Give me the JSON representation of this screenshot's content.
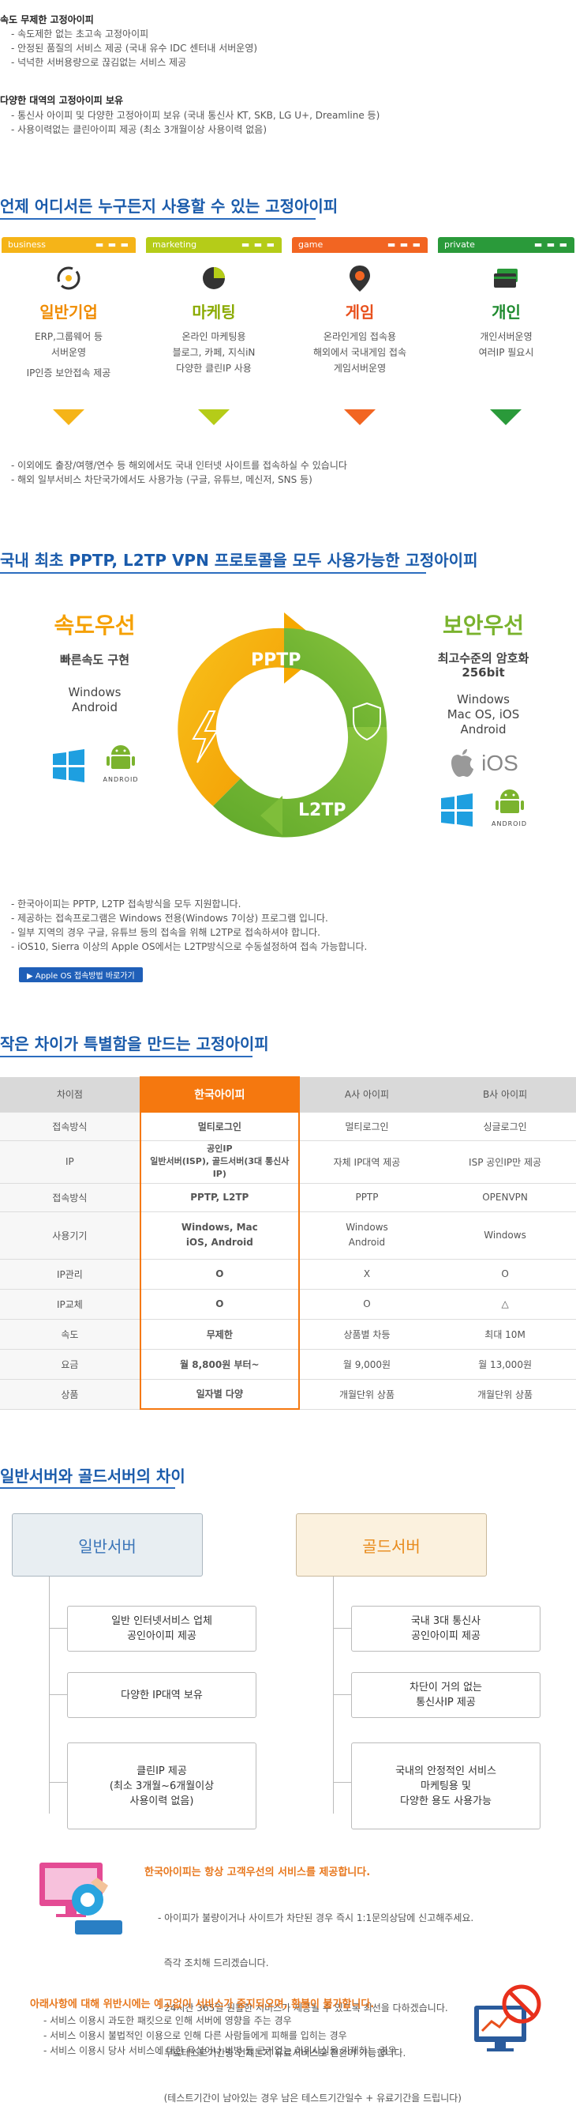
{
  "intro": {
    "group1_title": "속도 무제한 고정아이피",
    "group1_items": [
      "- 속도제한 없는 초고속 고정아이피",
      "- 안정된 품질의 서비스 제공 (국내 유수 IDC 센터내 서버운영)",
      "- 넉넉한 서버용량으로 끊김없는 서비스 제공"
    ],
    "group2_title": "다양한 대역의 고정아이피 보유",
    "group2_items": [
      "- 통신사 아이피 및 다양한 고정아이피 보유 (국내 통신사 KT, SKB, LG U+, Dreamline 등)",
      "- 사용이력없는 클린아이피 제공 (최소 3개월이상 사용이력 없음)"
    ]
  },
  "section1": {
    "title": "언제 어디서든 누구든지 사용할 수 있는 고정아이피",
    "categories": [
      {
        "tag": "business",
        "dots": "▬ ▬ ▬",
        "name": "일반기업",
        "lines": [
          "ERP,그룹웨어 등",
          "서버운영",
          "IP인증 보안접속 제공"
        ],
        "color": "#f5b418",
        "name_color": "#f08c00"
      },
      {
        "tag": "marketing",
        "dots": "▬ ▬ ▬",
        "name": "마케팅",
        "lines": [
          "온라인 마케팅용",
          "블로그, 카페, 지식iN",
          "다양한 클린IP 사용"
        ],
        "color": "#b5cc18",
        "name_color": "#8aaa00"
      },
      {
        "tag": "game",
        "dots": "▬ ▬ ▬",
        "name": "게임",
        "lines": [
          "온라인게임 접속용",
          "해외에서 국내게임 접속",
          "게임서버운영"
        ],
        "color": "#f26522",
        "name_color": "#e8501c"
      },
      {
        "tag": "private",
        "dots": "▬ ▬ ▬",
        "name": "개인",
        "lines": [
          "개인서버운영",
          "여러IP 필요시"
        ],
        "color": "#2a9a3a",
        "name_color": "#1e8a2e"
      }
    ],
    "notes": [
      "- 이외에도 출장/여행/연수 등 해외에서도 국내 인터넷 사이트를 접속하실 수 있습니다",
      "- 해외 일부서비스 차단국가에서도 사용가능 (구글, 유튜브, 메신저, SNS 등)"
    ]
  },
  "section2": {
    "title": "국내 최초 PPTP, L2TP VPN 프로토콜을 모두 사용가능한 고정아이피",
    "left_title": "속도우선",
    "left_sub": "빠른속도 구현",
    "left_os": [
      "Windows",
      "Android"
    ],
    "right_title": "보안우선",
    "right_sub": [
      "최고수준의 암호화",
      "256bit"
    ],
    "right_os": [
      "Windows",
      "Mac OS, iOS",
      "Android"
    ],
    "pptp_label": "PPTP",
    "l2tp_label": "L2TP",
    "android_label": "ANDROID",
    "ios_label": "iOS",
    "notes": [
      "- 한국아이피는 PPTP, L2TP 접속방식을 모두 지원합니다.",
      "- 제공하는 접속프로그램은 Windows 전용(Windows 7이상) 프로그램 입니다.",
      "- 일부 지역의 경우 구글, 유튜브 등의 접속을 위해 L2TP로 접속하셔야 합니다.",
      "- iOS10, Sierra 이상의 Apple OS에서는 L2TP방식으로 수동설정하여 접속 가능합니다."
    ],
    "apple_button": "▶ Apple OS 접속방법 바로가기"
  },
  "section3": {
    "title": "작은 차이가 특별함을 만드는 고정아이피",
    "headers": [
      "차이점",
      "한국아이피",
      "A사 아이피",
      "B사 아이피"
    ],
    "rows": [
      [
        "접속방식",
        "멀티로그인",
        "멀티로그인",
        "싱글로그인"
      ],
      [
        "IP",
        "공인IP\n일반서버(ISP), 골드서버(3대 통신사 IP)",
        "자체 IP대역 제공",
        "ISP 공인IP만 제공"
      ],
      [
        "접속방식",
        "PPTP, L2TP",
        "PPTP",
        "OPENVPN"
      ],
      [
        "사용기기",
        "Windows, Mac\niOS, Android",
        "Windows\nAndroid",
        "Windows"
      ],
      [
        "IP관리",
        "O",
        "X",
        "O"
      ],
      [
        "IP교체",
        "O",
        "O",
        "△"
      ],
      [
        "속도",
        "무제한",
        "상품별 차등",
        "최대 10M"
      ],
      [
        "요금",
        "월 8,800원 부터~",
        "월 9,000원",
        "월 13,000원"
      ],
      [
        "상품",
        "일자별 다양",
        "개월단위 상품",
        "개월단위 상품"
      ]
    ]
  },
  "section4": {
    "title": "일반서버와 골드서버의 차이",
    "general_title": "일반서버",
    "general_items": [
      "일반 인터넷서비스 업체\n공인아이피 제공",
      "다양한 IP대역 보유",
      "클린IP 제공\n(최소 3개월~6개월이상\n사용이력 없음)"
    ],
    "gold_title": "골드서버",
    "gold_items": [
      "국내 3대 통신사\n공인아이피 제공",
      "차단이 거의 없는\n통신사IP 제공",
      "국내의 안정적인 서비스\n마케팅용 및\n다양한 용도 사용가능"
    ]
  },
  "service": {
    "title": "한국아이피는 항상 고객우선의 서비스를 제공합니다.",
    "items": [
      "- 아이피가 불량이거나 사이트가 차단된 경우 즉시 1:1문의상담에 신고해주세요.",
      "  즉각 조치해 드리겠습니다.",
      "- 24시간 365일 원활한 서비스가 제공될 수 있도록 최선을 다하겠습니다.",
      "- 무료테스트기간중 언제든지 유료서비스로 전환이 가능합니다.",
      "  (테스트기간이 남아있는 경우 남은 테스트기간일수 + 유료기간을 드립니다)"
    ]
  },
  "warning": {
    "title": "아래사항에 대해 위반시에는 예고없이 서비스가 중지되오며, 환불이 불가합니다.",
    "items": [
      "- 서비스 이용시 과도한 패킷으로 인해 서버에 영향을 주는 경우",
      "- 서비스 이용시 불법적인 이용으로 인해 다른 사람들에게 피해를 입히는 경우",
      "- 서비스 이용시 당사 서비스에 대한 욕설이나 비방 등 근거없는 허위사실을 기재하는 경우"
    ]
  }
}
